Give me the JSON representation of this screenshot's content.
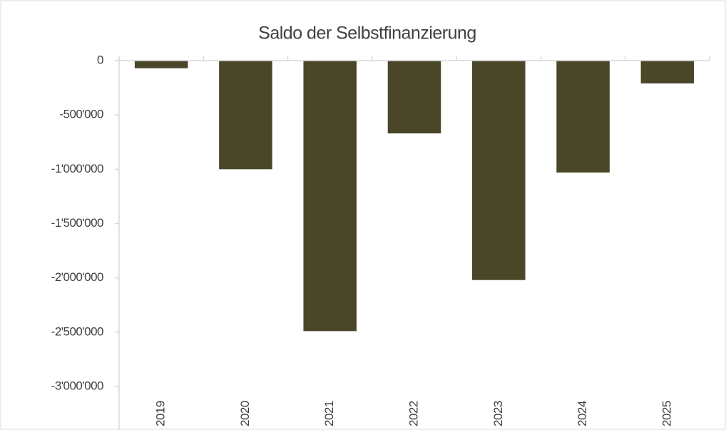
{
  "chart_data": {
    "type": "bar",
    "title": "Saldo der Selbstfinanzierung",
    "categories": [
      "2019",
      "2020",
      "2021",
      "2022",
      "2023",
      "2024",
      "2025"
    ],
    "values": [
      -70000,
      -1000000,
      -2490000,
      -670000,
      -2020000,
      -1030000,
      -210000
    ],
    "color": "#4a4628",
    "ylim": [
      -3000000,
      0
    ],
    "yticks": [
      0,
      {
        "value": -500000,
        "label": "-500'000"
      },
      {
        "value": -1000000,
        "label": "-1'000'000"
      },
      {
        "value": -1500000,
        "label": "-1'500'000"
      },
      {
        "value": -2000000,
        "label": "-2'000'000"
      },
      {
        "value": -2500000,
        "label": "-2'500'000"
      },
      {
        "value": -3000000,
        "label": "-3'000'000"
      }
    ],
    "grid": false
  }
}
